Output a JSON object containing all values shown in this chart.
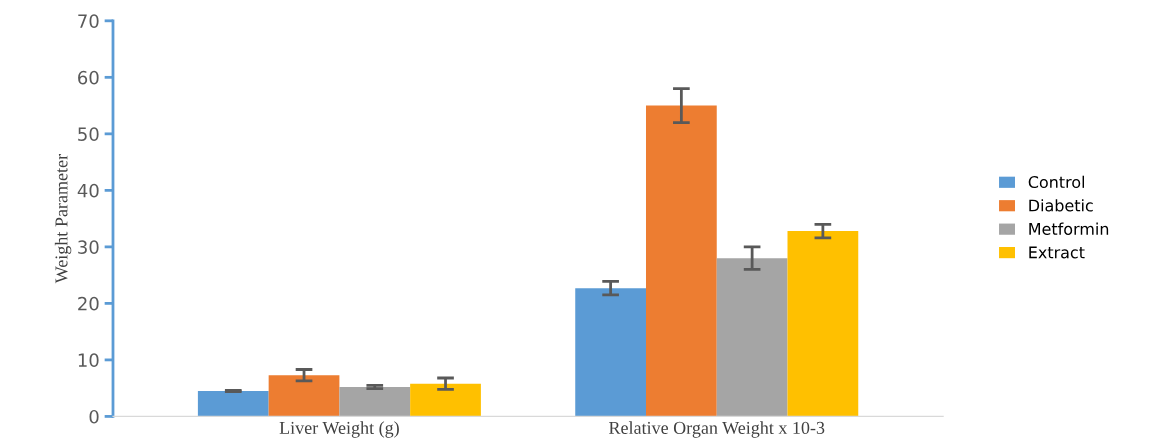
{
  "chart_data": {
    "type": "bar",
    "ylabel": "Weight Parameter",
    "categories": [
      "Liver Weight (g)",
      "Relative Organ Weight x 10-3"
    ],
    "series": [
      {
        "name": "Control",
        "color": "#5b9bd5",
        "values": [
          4.5,
          22.7
        ],
        "errors": [
          0.1,
          1.2
        ]
      },
      {
        "name": "Diabetic",
        "color": "#ed7d31",
        "values": [
          7.3,
          55
        ],
        "errors": [
          1,
          3
        ]
      },
      {
        "name": "Metformin",
        "color": "#a5a5a5",
        "values": [
          5.2,
          28
        ],
        "errors": [
          0.3,
          2
        ]
      },
      {
        "name": "Extract",
        "color": "#ffc000",
        "values": [
          5.8,
          32.8
        ],
        "errors": [
          1,
          1.2
        ]
      }
    ],
    "ylim": [
      0,
      70
    ],
    "yticks": [
      0,
      10,
      20,
      30,
      40,
      50,
      60,
      70
    ],
    "grid": false,
    "legend": "right"
  }
}
